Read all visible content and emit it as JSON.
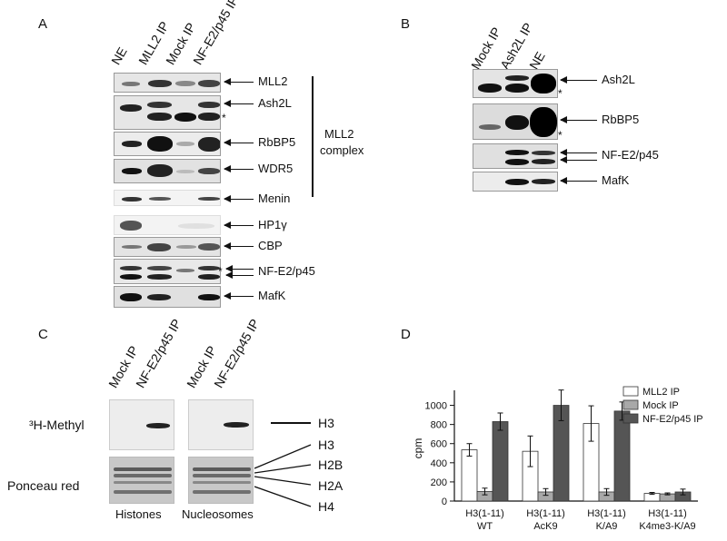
{
  "panels": {
    "A": "A",
    "B": "B",
    "C": "C",
    "D": "D"
  },
  "panelA": {
    "lanes": [
      "NE",
      "MLL2 IP",
      "Mock IP",
      "NF-E2/p45 IP"
    ],
    "rows": [
      "MLL2",
      "Ash2L",
      "RbBP5",
      "WDR5",
      "Menin",
      "HP1γ",
      "CBP",
      "NF-E2/p45",
      "MafK"
    ],
    "complex_line1": "MLL2",
    "complex_line2": "complex",
    "star": "*"
  },
  "panelB": {
    "lanes": [
      "Mock IP",
      "Ash2L IP",
      "NE"
    ],
    "rows": [
      "Ash2L",
      "RbBP5",
      "NF-E2/p45",
      "MafK"
    ],
    "star": "*"
  },
  "panelC": {
    "lanes_left": [
      "Mock IP",
      "NF-E2/p45 IP"
    ],
    "lanes_right": [
      "Mock IP",
      "NF-E2/p45 IP"
    ],
    "methyl_label": "³H-Methyl",
    "ponceau_label": "Ponceau red",
    "histones_label": "Histones",
    "nucleosomes_label": "Nucleosomes",
    "h3_top": "H3",
    "histone_bands": [
      "H3",
      "H2B",
      "H2A",
      "H4"
    ]
  },
  "chart_data": {
    "type": "bar",
    "title": "",
    "xlabel": "",
    "ylabel": "cpm",
    "ylim": [
      0,
      1100
    ],
    "yticks": [
      0,
      200,
      400,
      600,
      800,
      1000
    ],
    "categories": [
      "H3(1-11) WT",
      "H3(1-11) AcK9",
      "H3(1-11) K/A9",
      "H3(1-11) K4me3-K/A9"
    ],
    "category_lines": [
      [
        "H3(1-11)",
        "WT"
      ],
      [
        "H3(1-11)",
        "AcK9"
      ],
      [
        "H3(1-11)",
        "K/A9"
      ],
      [
        "H3(1-11)",
        "K4me3-K/A9"
      ]
    ],
    "legend_position": "top-right",
    "series": [
      {
        "name": "MLL2 IP",
        "color": "#ffffff",
        "values": [
          535,
          520,
          810,
          80
        ],
        "errors": [
          65,
          160,
          185,
          10
        ]
      },
      {
        "name": "Mock IP",
        "color": "#a8a8a8",
        "values": [
          100,
          95,
          95,
          75
        ],
        "errors": [
          35,
          35,
          35,
          10
        ]
      },
      {
        "name": "NF-E2/p45 IP",
        "color": "#555555",
        "values": [
          830,
          1000,
          940,
          95
        ],
        "errors": [
          90,
          160,
          95,
          30
        ]
      }
    ]
  }
}
